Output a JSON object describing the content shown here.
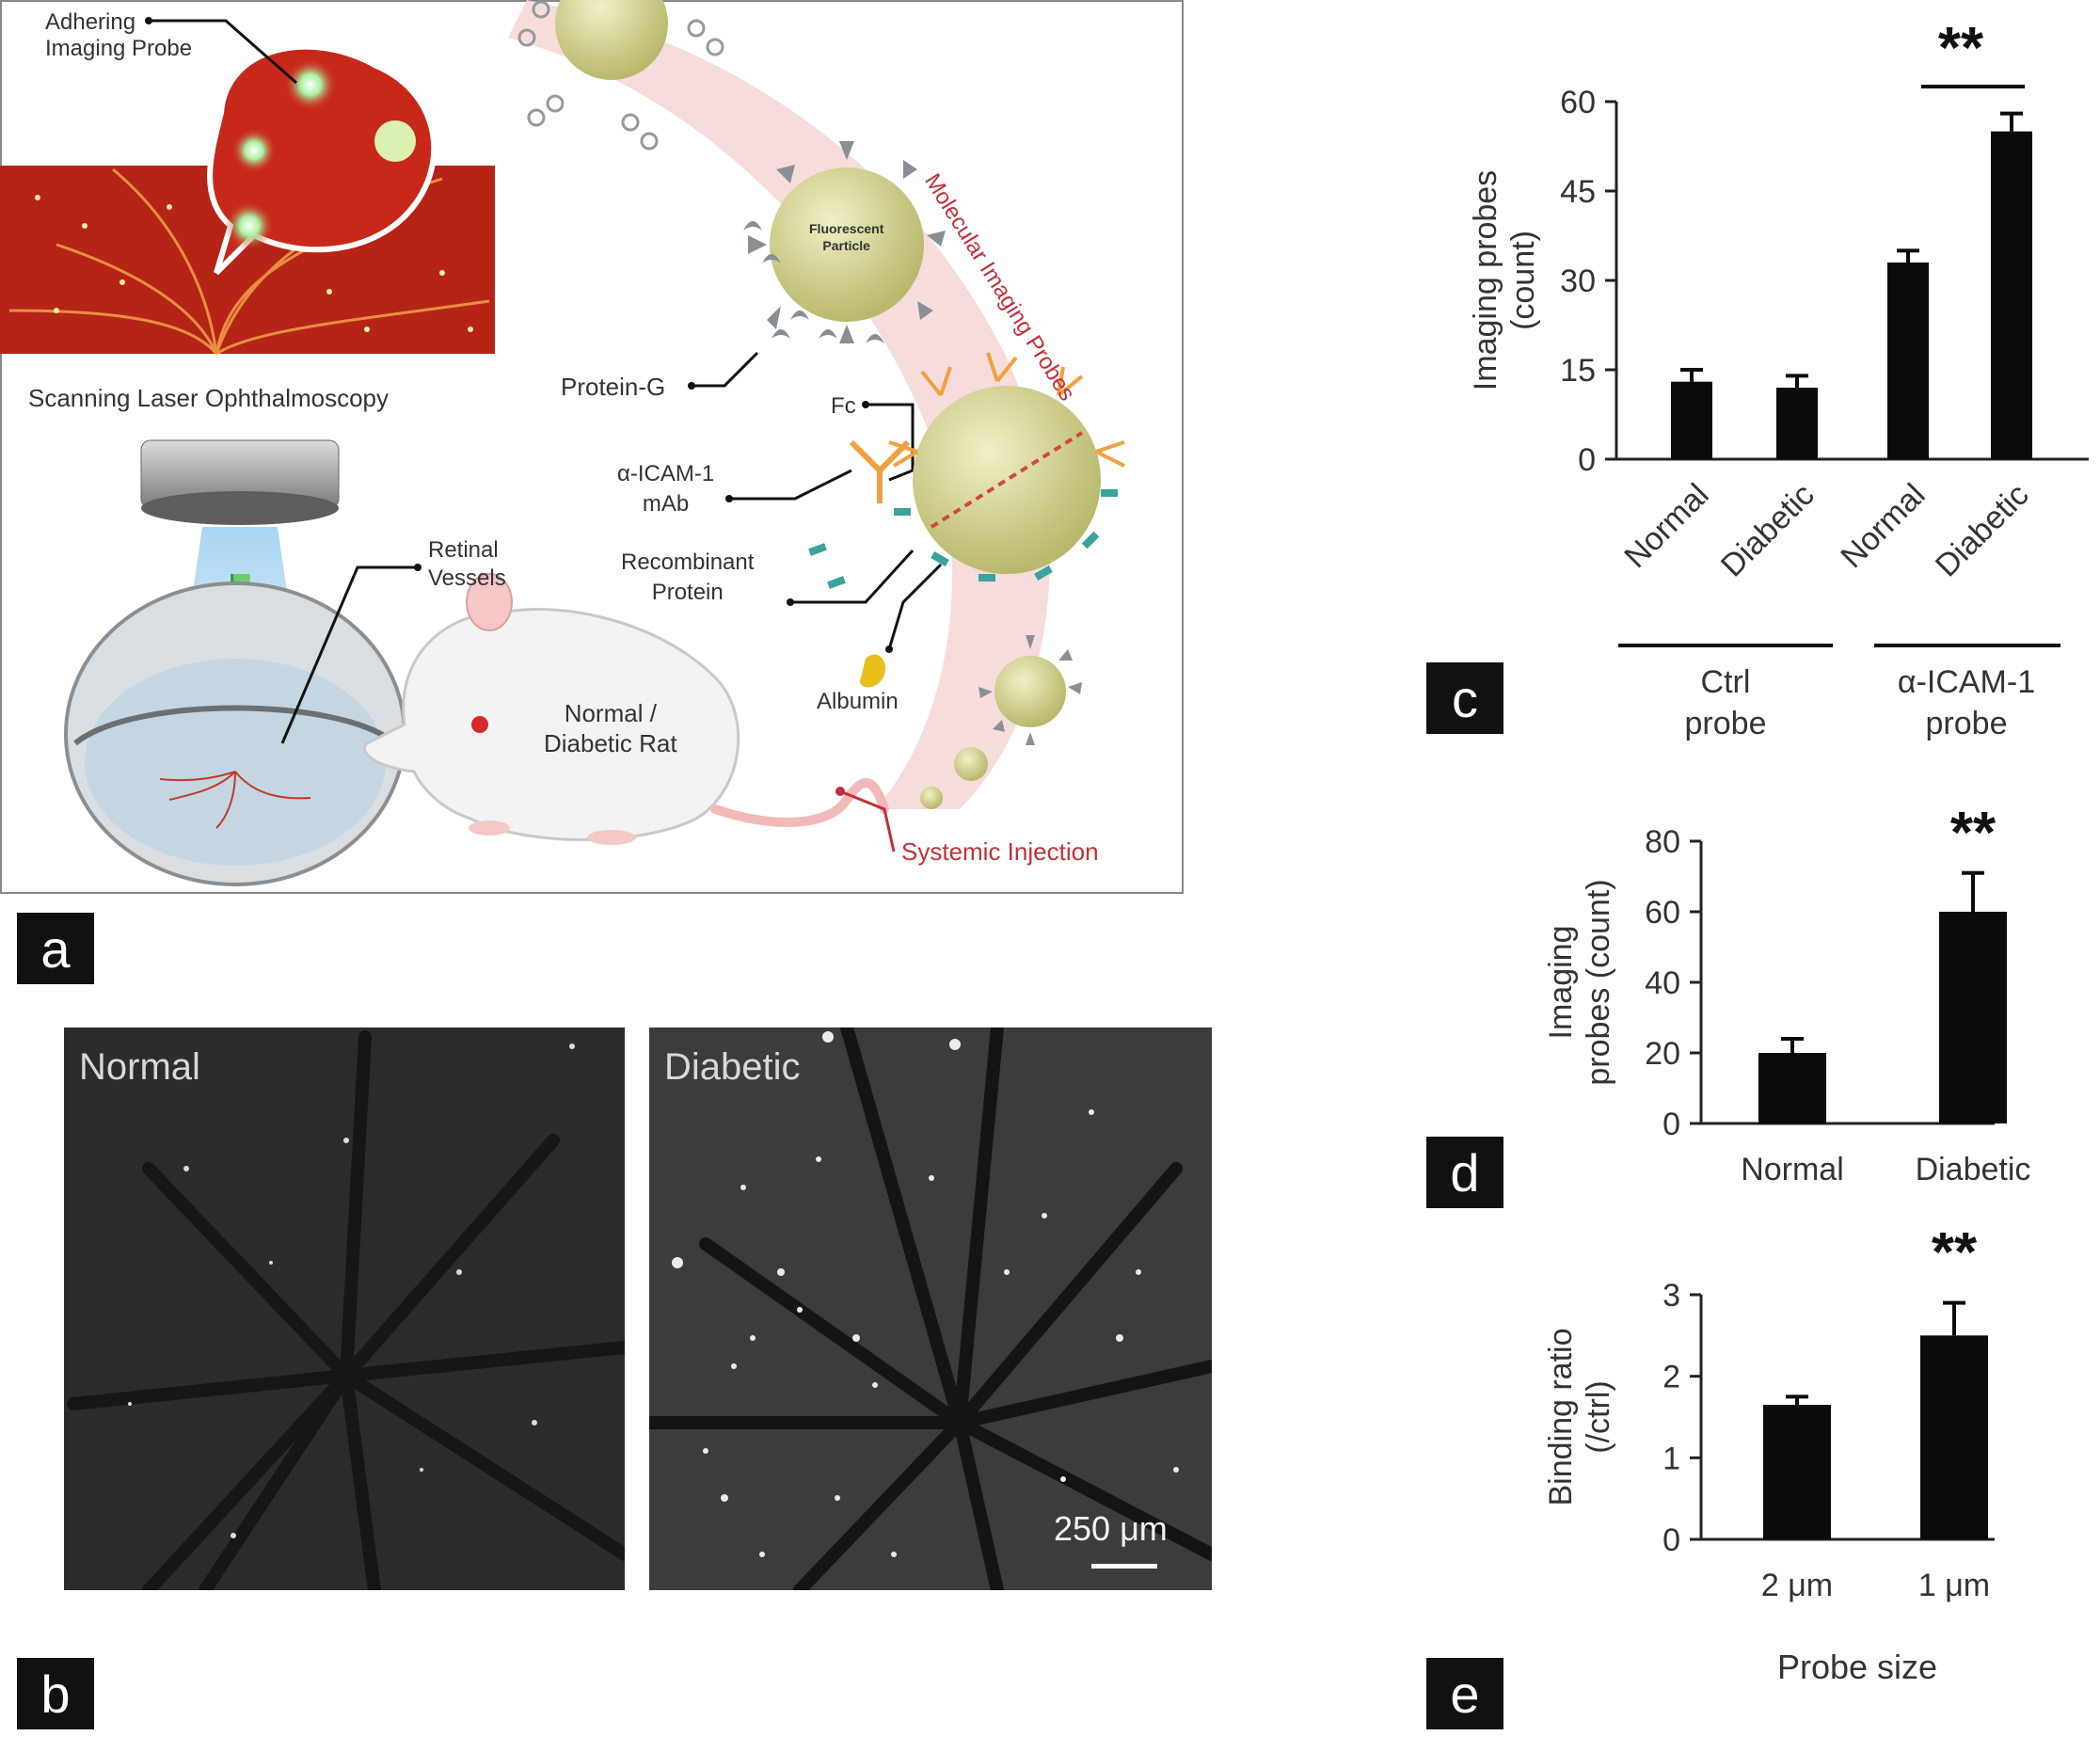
{
  "figure": {
    "panel_letters": [
      "a",
      "b",
      "c",
      "d",
      "e"
    ]
  },
  "panel_a": {
    "labels": {
      "adhering_probe": "Adhering\nImaging Probe",
      "slo": "Scanning Laser Ophthalmoscopy",
      "retinal_vessels": "Retinal\nVessels",
      "rat": "Normal /\nDiabetic Rat",
      "systemic_injection": "Systemic Injection",
      "fluorescent_particle": "Fluorescent\nParticle",
      "protein_g": "Protein-G",
      "fc": "Fc",
      "icam_mab": "α-ICAM-1\nmAb",
      "recombinant": "Recombinant\nProtein",
      "albumin": "Albumin",
      "band_title": "Molecular Imaging Probes"
    },
    "colors": {
      "retina_red": "#c8281a",
      "particle": "#c9c98a",
      "band": "#f6d6d6",
      "injection_red": "#c0303a"
    }
  },
  "panel_b": {
    "left_title": "Normal",
    "right_title": "Diabetic",
    "scale_bar_label": "250 μm"
  },
  "chart_data": [
    {
      "panel": "c",
      "type": "bar",
      "ylabel": "Imaging probes\n(count)",
      "ylim": [
        0,
        60
      ],
      "yticks": [
        "0",
        "15",
        "30",
        "45",
        "60"
      ],
      "categories": [
        "Normal",
        "Diabetic",
        "Normal",
        "Diabetic"
      ],
      "values": [
        13,
        12,
        33,
        55
      ],
      "errors": [
        2,
        2,
        2,
        3
      ],
      "groups": [
        "Ctrl\nprobe",
        "α-ICAM-1\nprobe"
      ],
      "significance": "**"
    },
    {
      "panel": "d",
      "type": "bar",
      "ylabel": "Imaging\nprobes (count)",
      "ylim": [
        0,
        80
      ],
      "yticks": [
        "0",
        "20",
        "40",
        "60",
        "80"
      ],
      "categories": [
        "Normal",
        "Diabetic"
      ],
      "values": [
        20,
        60
      ],
      "errors": [
        4,
        11
      ],
      "significance": "**"
    },
    {
      "panel": "e",
      "type": "bar",
      "ylabel": "Binding ratio\n(/ctrl)",
      "xlabel": "Probe size",
      "ylim": [
        0,
        3
      ],
      "yticks": [
        "0",
        "1",
        "2",
        "3"
      ],
      "categories": [
        "2 μm",
        "1 μm"
      ],
      "values": [
        1.65,
        2.5
      ],
      "errors": [
        0.1,
        0.4
      ],
      "significance": "**"
    }
  ]
}
